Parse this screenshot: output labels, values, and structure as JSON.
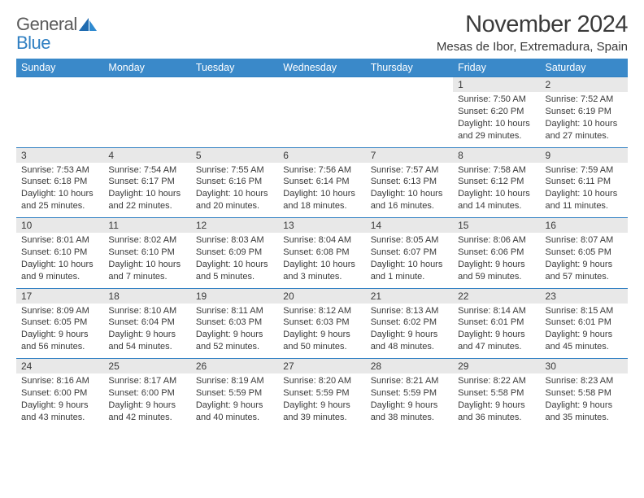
{
  "logo": {
    "general": "General",
    "blue": "Blue"
  },
  "title": "November 2024",
  "location": "Mesas de Ibor, Extremadura, Spain",
  "colors": {
    "header_bg": "#3a89c9",
    "header_text": "#ffffff",
    "daynum_bg": "#e8e8e8",
    "border": "#2f7fc2",
    "logo_gray": "#5a5a5a",
    "logo_blue": "#2f7fc2",
    "text": "#3a3a3a"
  },
  "weekdays": [
    "Sunday",
    "Monday",
    "Tuesday",
    "Wednesday",
    "Thursday",
    "Friday",
    "Saturday"
  ],
  "weeks": [
    [
      null,
      null,
      null,
      null,
      null,
      {
        "n": "1",
        "sr": "7:50 AM",
        "ss": "6:20 PM",
        "dl": "10 hours and 29 minutes."
      },
      {
        "n": "2",
        "sr": "7:52 AM",
        "ss": "6:19 PM",
        "dl": "10 hours and 27 minutes."
      }
    ],
    [
      {
        "n": "3",
        "sr": "7:53 AM",
        "ss": "6:18 PM",
        "dl": "10 hours and 25 minutes."
      },
      {
        "n": "4",
        "sr": "7:54 AM",
        "ss": "6:17 PM",
        "dl": "10 hours and 22 minutes."
      },
      {
        "n": "5",
        "sr": "7:55 AM",
        "ss": "6:16 PM",
        "dl": "10 hours and 20 minutes."
      },
      {
        "n": "6",
        "sr": "7:56 AM",
        "ss": "6:14 PM",
        "dl": "10 hours and 18 minutes."
      },
      {
        "n": "7",
        "sr": "7:57 AM",
        "ss": "6:13 PM",
        "dl": "10 hours and 16 minutes."
      },
      {
        "n": "8",
        "sr": "7:58 AM",
        "ss": "6:12 PM",
        "dl": "10 hours and 14 minutes."
      },
      {
        "n": "9",
        "sr": "7:59 AM",
        "ss": "6:11 PM",
        "dl": "10 hours and 11 minutes."
      }
    ],
    [
      {
        "n": "10",
        "sr": "8:01 AM",
        "ss": "6:10 PM",
        "dl": "10 hours and 9 minutes."
      },
      {
        "n": "11",
        "sr": "8:02 AM",
        "ss": "6:10 PM",
        "dl": "10 hours and 7 minutes."
      },
      {
        "n": "12",
        "sr": "8:03 AM",
        "ss": "6:09 PM",
        "dl": "10 hours and 5 minutes."
      },
      {
        "n": "13",
        "sr": "8:04 AM",
        "ss": "6:08 PM",
        "dl": "10 hours and 3 minutes."
      },
      {
        "n": "14",
        "sr": "8:05 AM",
        "ss": "6:07 PM",
        "dl": "10 hours and 1 minute."
      },
      {
        "n": "15",
        "sr": "8:06 AM",
        "ss": "6:06 PM",
        "dl": "9 hours and 59 minutes."
      },
      {
        "n": "16",
        "sr": "8:07 AM",
        "ss": "6:05 PM",
        "dl": "9 hours and 57 minutes."
      }
    ],
    [
      {
        "n": "17",
        "sr": "8:09 AM",
        "ss": "6:05 PM",
        "dl": "9 hours and 56 minutes."
      },
      {
        "n": "18",
        "sr": "8:10 AM",
        "ss": "6:04 PM",
        "dl": "9 hours and 54 minutes."
      },
      {
        "n": "19",
        "sr": "8:11 AM",
        "ss": "6:03 PM",
        "dl": "9 hours and 52 minutes."
      },
      {
        "n": "20",
        "sr": "8:12 AM",
        "ss": "6:03 PM",
        "dl": "9 hours and 50 minutes."
      },
      {
        "n": "21",
        "sr": "8:13 AM",
        "ss": "6:02 PM",
        "dl": "9 hours and 48 minutes."
      },
      {
        "n": "22",
        "sr": "8:14 AM",
        "ss": "6:01 PM",
        "dl": "9 hours and 47 minutes."
      },
      {
        "n": "23",
        "sr": "8:15 AM",
        "ss": "6:01 PM",
        "dl": "9 hours and 45 minutes."
      }
    ],
    [
      {
        "n": "24",
        "sr": "8:16 AM",
        "ss": "6:00 PM",
        "dl": "9 hours and 43 minutes."
      },
      {
        "n": "25",
        "sr": "8:17 AM",
        "ss": "6:00 PM",
        "dl": "9 hours and 42 minutes."
      },
      {
        "n": "26",
        "sr": "8:19 AM",
        "ss": "5:59 PM",
        "dl": "9 hours and 40 minutes."
      },
      {
        "n": "27",
        "sr": "8:20 AM",
        "ss": "5:59 PM",
        "dl": "9 hours and 39 minutes."
      },
      {
        "n": "28",
        "sr": "8:21 AM",
        "ss": "5:59 PM",
        "dl": "9 hours and 38 minutes."
      },
      {
        "n": "29",
        "sr": "8:22 AM",
        "ss": "5:58 PM",
        "dl": "9 hours and 36 minutes."
      },
      {
        "n": "30",
        "sr": "8:23 AM",
        "ss": "5:58 PM",
        "dl": "9 hours and 35 minutes."
      }
    ]
  ],
  "labels": {
    "sunrise": "Sunrise:",
    "sunset": "Sunset:",
    "daylight": "Daylight:"
  }
}
